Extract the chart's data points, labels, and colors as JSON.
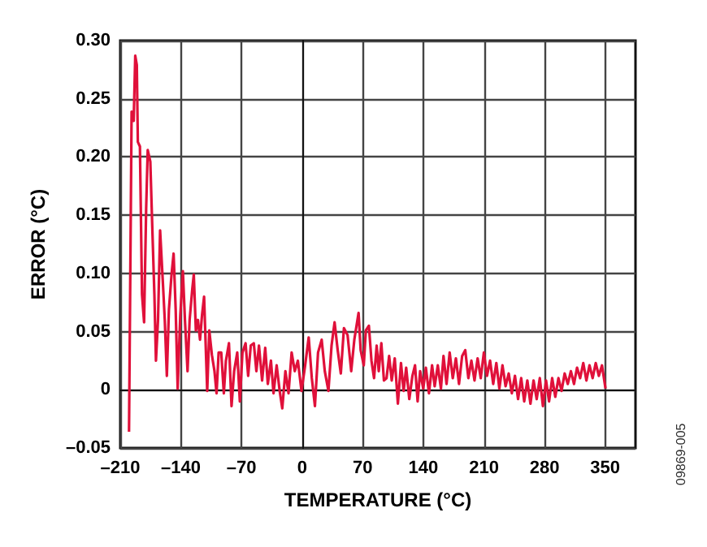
{
  "chart_data": {
    "type": "line",
    "xlabel": "TEMPERATURE (°C)",
    "ylabel": "ERROR (°C)",
    "annotations": [
      "09869-005"
    ],
    "xlim": [
      -210,
      385
    ],
    "ylim": [
      -0.05,
      0.3
    ],
    "xticks": [
      {
        "value": -210,
        "label": "–210"
      },
      {
        "value": -140,
        "label": "–140"
      },
      {
        "value": -70,
        "label": "–70"
      },
      0,
      70,
      140,
      210,
      280,
      350
    ],
    "yticks": [
      {
        "value": -0.05,
        "label": "–0.05"
      },
      0,
      {
        "value": 0.05,
        "label": "0.05"
      },
      {
        "value": 0.1,
        "label": "0.10"
      },
      {
        "value": 0.15,
        "label": "0.15"
      },
      {
        "value": 0.2,
        "label": "0.20"
      },
      {
        "value": 0.25,
        "label": "0.25"
      },
      {
        "value": 0.3,
        "label": "0.30"
      }
    ],
    "grid": true,
    "marker": "none",
    "line_style": "solid",
    "series": [
      {
        "color": "#e0103a",
        "x": [
          -199.9,
          -196.9,
          -194.5,
          -192.7,
          -190.9,
          -189.7,
          -187.3,
          -184.9,
          -182.5,
          -180.1,
          -178.3,
          -175.3,
          -173,
          -170.6,
          -168.8,
          -166.4,
          -164,
          -161,
          -158.6,
          -156.2,
          -153.8,
          -150.8,
          -148.4,
          -146,
          -143.7,
          -140.7,
          -137.7,
          -135.3,
          -132.3,
          -129.9,
          -126.9,
          -125.1,
          -122.7,
          -120.3,
          -117.9,
          -115.6,
          -113.2,
          -109.6,
          -107.2,
          -104.2,
          -101.2,
          -98.8,
          -96.4,
          -93.4,
          -90.4,
          -88,
          -84.5,
          -81.5,
          -78.5,
          -74.9,
          -71.9,
          -68.9,
          -65.3,
          -62.3,
          -59.3,
          -55.8,
          -52.8,
          -49.8,
          -46.2,
          -42.6,
          -39.6,
          -36,
          -33,
          -29.4,
          -25.9,
          -22.9,
          -19.3,
          -15.7,
          -12.1,
          -8.5,
          -4.9,
          -0.7,
          3.5,
          7.6,
          11.2,
          14.8,
          18.4,
          22.6,
          26.2,
          30.4,
          34,
          37.5,
          41.1,
          44.7,
          48.3,
          52.5,
          56.7,
          60.3,
          65.2,
          67.6,
          71.2,
          73.6,
          77.1,
          80.1,
          83.1,
          86.1,
          88.5,
          91.5,
          94.5,
          97.5,
          100.5,
          103.5,
          107,
          110.6,
          114.2,
          117.2,
          120.2,
          123.8,
          127.4,
          130.4,
          133.4,
          136.3,
          139.9,
          142.9,
          146.5,
          150.1,
          153.1,
          156.7,
          160.3,
          163.3,
          166.8,
          170.4,
          174,
          177.6,
          181.2,
          184.8,
          188.4,
          192,
          195.5,
          199.1,
          202.7,
          206.3,
          209.9,
          213.5,
          217.1,
          220.7,
          224.3,
          227.8,
          231.4,
          235,
          238.6,
          242.2,
          245.8,
          249.4,
          253,
          256.5,
          260.1,
          263.7,
          267.3,
          270.9,
          274.5,
          278.1,
          281.7,
          285.2,
          288.8,
          292.4,
          296,
          299.6,
          303.2,
          306.8,
          310.4,
          314,
          317.5,
          321.1,
          324.7,
          328.3,
          331.9,
          335.5,
          339.1,
          342.7,
          346.3,
          350.4
        ],
        "values": [
          -0.036,
          0.239,
          0.231,
          0.287,
          0.279,
          0.213,
          0.209,
          0.082,
          0.058,
          0.156,
          0.206,
          0.196,
          0.139,
          0.082,
          0.025,
          0.06,
          0.137,
          0.095,
          0.06,
          0.012,
          0.069,
          0.099,
          0.117,
          0.069,
          0.001,
          0.064,
          0.102,
          0.06,
          0.016,
          0.06,
          0.086,
          0.099,
          0.051,
          0.06,
          0.043,
          0.064,
          0.08,
          -0.001,
          0.051,
          0.03,
          0.016,
          -0.003,
          0.032,
          0.032,
          -0.003,
          0.025,
          0.04,
          -0.014,
          0.016,
          0.032,
          -0.01,
          0.032,
          0.04,
          0.012,
          0.038,
          0.04,
          0.016,
          0.038,
          0.008,
          0.036,
          0.005,
          0.025,
          -0.003,
          0.021,
          -0.001,
          -0.016,
          0.016,
          -0.003,
          0.032,
          0.016,
          0.025,
          -0.001,
          0.021,
          0.045,
          0.01,
          -0.014,
          0.032,
          0.043,
          0.016,
          -0.001,
          0.038,
          0.058,
          0.034,
          0.014,
          0.053,
          0.047,
          0.016,
          0.043,
          0.066,
          0.034,
          0.021,
          0.051,
          0.055,
          0.025,
          0.01,
          0.038,
          0.016,
          0.04,
          0.008,
          0.01,
          0.029,
          0.008,
          0.027,
          -0.012,
          0.023,
          -0.001,
          0.019,
          -0.008,
          0.012,
          0.021,
          -0.01,
          0.016,
          0.001,
          0.019,
          -0.003,
          0.021,
          0.003,
          0.021,
          0.001,
          0.029,
          0.005,
          0.032,
          0.01,
          0.027,
          0.005,
          0.029,
          0.034,
          0.01,
          0.025,
          0.008,
          0.027,
          0.01,
          0.032,
          0.012,
          0.025,
          0.005,
          0.023,
          0.001,
          0.021,
          0.003,
          0.014,
          -0.003,
          0.012,
          -0.008,
          0.01,
          -0.01,
          0.008,
          -0.012,
          0.008,
          -0.008,
          0.01,
          -0.014,
          0.008,
          -0.01,
          0.01,
          -0.006,
          0.01,
          -0.001,
          0.014,
          0.005,
          0.016,
          0.005,
          0.019,
          0.01,
          0.023,
          0.008,
          0.021,
          0.01,
          0.023,
          0.012,
          0.021,
          0.001
        ]
      }
    ]
  }
}
